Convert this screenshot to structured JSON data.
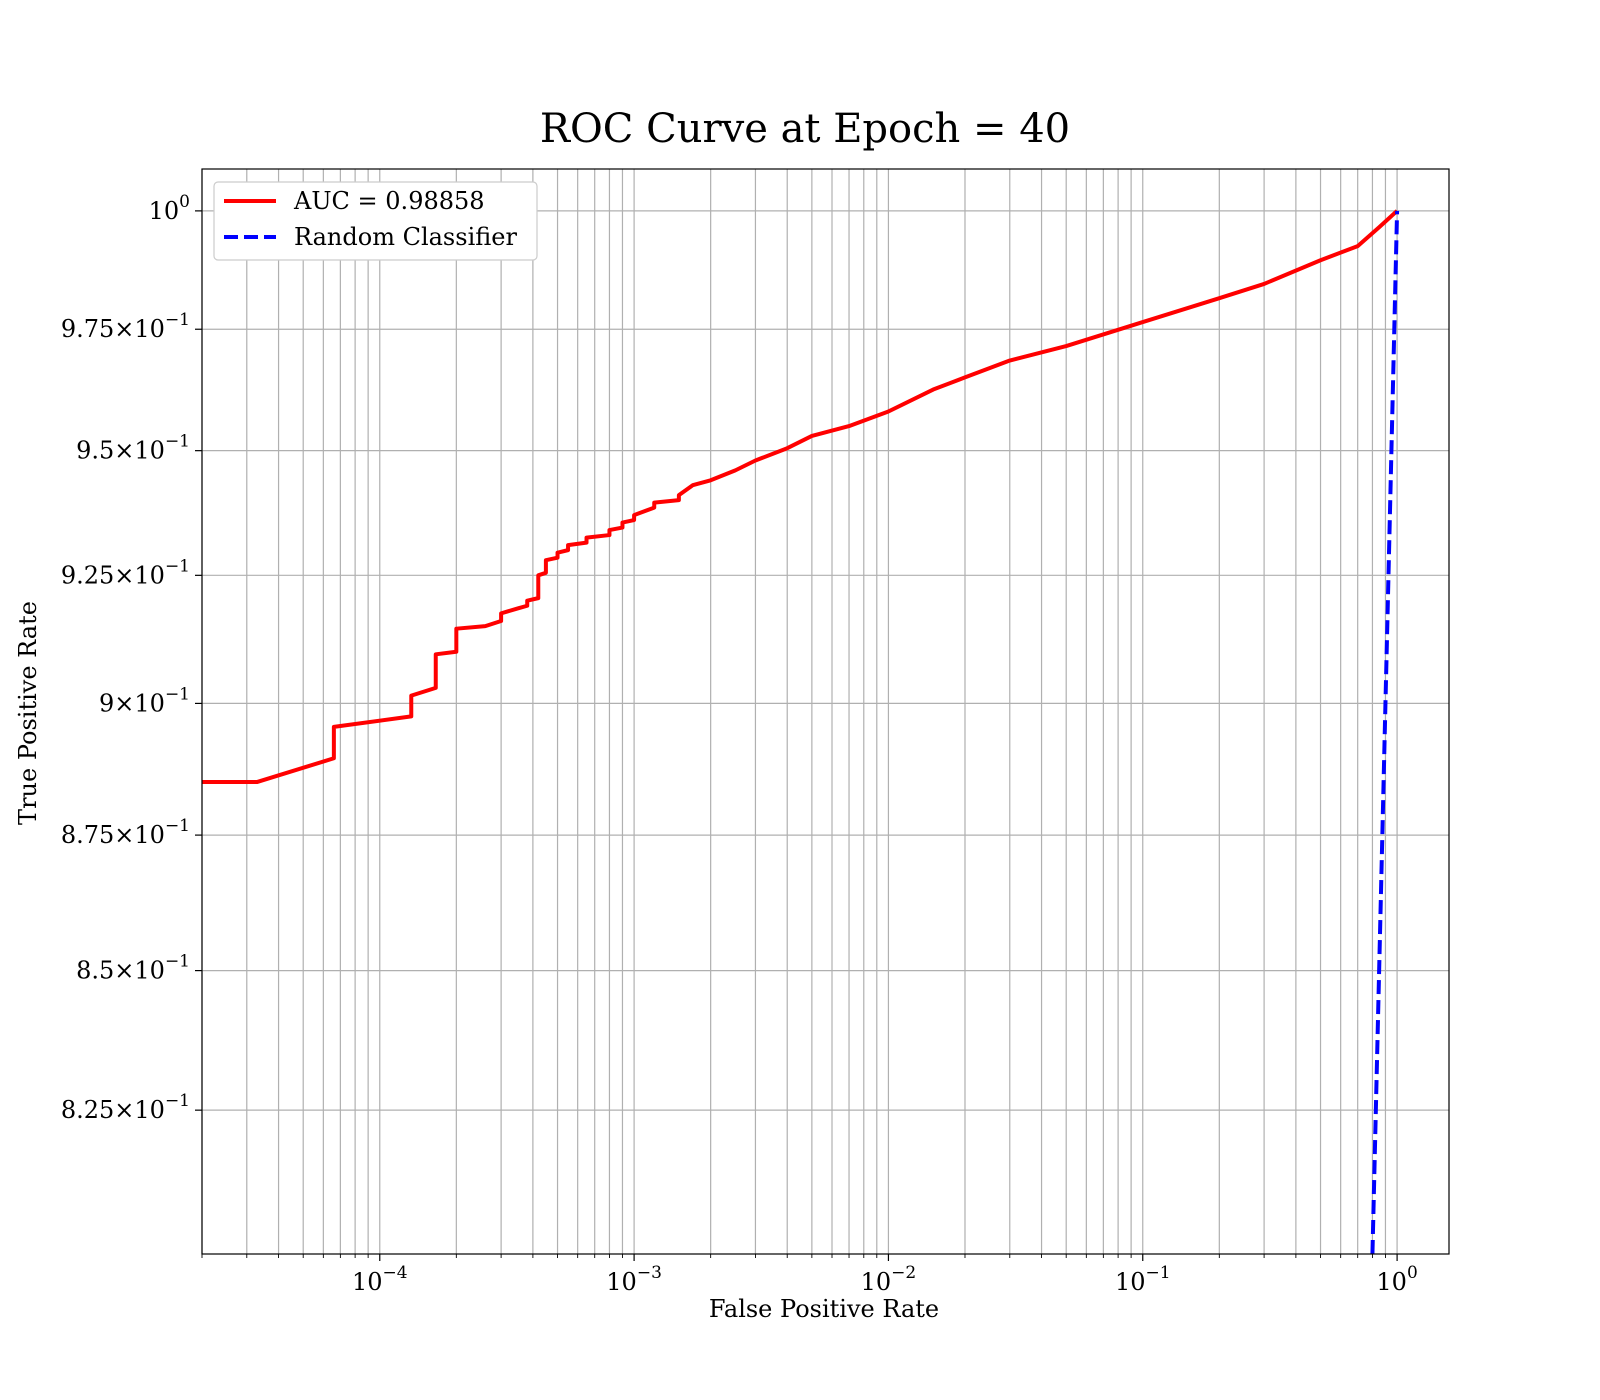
{
  "chart_data": {
    "type": "line",
    "title": "ROC Curve at Epoch = 40",
    "xlabel": "False Positive Rate",
    "ylabel": "True Positive Rate",
    "xscale": "log",
    "yscale": "log",
    "xlim": [
      2e-05,
      1.6
    ],
    "ylim": [
      0.8,
      1.009
    ],
    "grid": true,
    "legend_placement": "top-left",
    "x_ticks": [
      {
        "value": 0.0001,
        "base": "10",
        "exp": "−4"
      },
      {
        "value": 0.001,
        "base": "10",
        "exp": "−3"
      },
      {
        "value": 0.01,
        "base": "10",
        "exp": "−2"
      },
      {
        "value": 0.1,
        "base": "10",
        "exp": "−1"
      },
      {
        "value": 1,
        "base": "10",
        "exp": "0"
      }
    ],
    "y_ticks": [
      {
        "value": 1.0,
        "mant": "",
        "base": "10",
        "exp": "0"
      },
      {
        "value": 0.975,
        "mant": "9.75",
        "base": "10",
        "exp": "−1"
      },
      {
        "value": 0.95,
        "mant": "9.5",
        "base": "10",
        "exp": "−1"
      },
      {
        "value": 0.925,
        "mant": "9.25",
        "base": "10",
        "exp": "−1"
      },
      {
        "value": 0.9,
        "mant": "9",
        "base": "10",
        "exp": "−1"
      },
      {
        "value": 0.875,
        "mant": "8.75",
        "base": "10",
        "exp": "−1"
      },
      {
        "value": 0.85,
        "mant": "8.5",
        "base": "10",
        "exp": "−1"
      },
      {
        "value": 0.825,
        "mant": "8.25",
        "base": "10",
        "exp": "−1"
      }
    ],
    "series": [
      {
        "name": "AUC = 0.98858",
        "color": "#ff0000",
        "style": "solid",
        "x": [
          2e-05,
          3.3e-05,
          6.6e-05,
          6.6e-05,
          0.000133,
          0.000133,
          0.000166,
          0.000166,
          0.0002,
          0.0002,
          0.00026,
          0.0003,
          0.0003,
          0.00035,
          0.00038,
          0.00038,
          0.00042,
          0.00042,
          0.00045,
          0.00045,
          0.0005,
          0.0005,
          0.00055,
          0.00055,
          0.00065,
          0.00065,
          0.0008,
          0.0008,
          0.0009,
          0.0009,
          0.001,
          0.001,
          0.0012,
          0.0012,
          0.0015,
          0.0015,
          0.0017,
          0.002,
          0.0025,
          0.003,
          0.004,
          0.005,
          0.007,
          0.01,
          0.015,
          0.02,
          0.03,
          0.05,
          0.1,
          0.2,
          0.3,
          0.5,
          0.7,
          0.85,
          1.0
        ],
        "y": [
          0.885,
          0.885,
          0.8895,
          0.8955,
          0.8975,
          0.9015,
          0.903,
          0.9095,
          0.91,
          0.9145,
          0.915,
          0.916,
          0.9175,
          0.9185,
          0.919,
          0.92,
          0.9205,
          0.925,
          0.9255,
          0.928,
          0.9285,
          0.9295,
          0.93,
          0.931,
          0.9315,
          0.9325,
          0.933,
          0.934,
          0.9345,
          0.9355,
          0.936,
          0.937,
          0.9385,
          0.9395,
          0.94,
          0.941,
          0.943,
          0.944,
          0.946,
          0.948,
          0.9505,
          0.953,
          0.955,
          0.958,
          0.9625,
          0.965,
          0.9685,
          0.9715,
          0.9765,
          0.9815,
          0.9845,
          0.9895,
          0.9925,
          0.9965,
          1.0
        ]
      },
      {
        "name": "Random Classifier",
        "color": "#0000ff",
        "style": "dashed",
        "x": [
          0.8,
          1.0
        ],
        "y": [
          0.8,
          1.0
        ]
      }
    ]
  }
}
